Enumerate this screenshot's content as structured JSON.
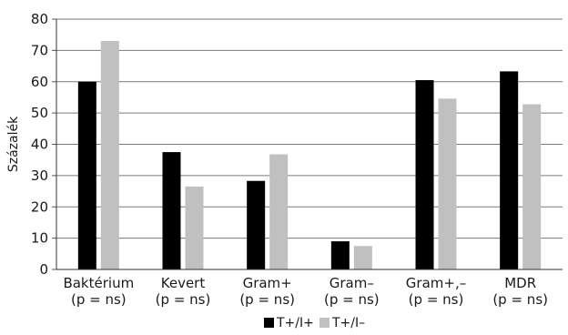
{
  "chart_data": {
    "type": "bar",
    "title": "",
    "xlabel": "",
    "ylabel": "Százalék",
    "ylim": [
      0,
      80
    ],
    "yticks": [
      0,
      10,
      20,
      30,
      40,
      50,
      60,
      70,
      80
    ],
    "grid": true,
    "legend_position": "bottom-center",
    "categories": [
      [
        "Baktérium",
        "(p = ns)"
      ],
      [
        "Kevert",
        "(p = ns)"
      ],
      [
        "Gram+",
        "(p = ns)"
      ],
      [
        "Gram–",
        "(p = ns)"
      ],
      [
        "Gram+,–",
        "(p = ns)"
      ],
      [
        "MDR",
        "(p = ns)"
      ]
    ],
    "series": [
      {
        "name": "T+/I+",
        "color": "#000000",
        "values": [
          60,
          37.5,
          28.3,
          9,
          60.5,
          63.3
        ]
      },
      {
        "name": "T+/I–",
        "color": "#c0c0c0",
        "values": [
          73,
          26.5,
          36.8,
          7.5,
          54.6,
          52.8
        ]
      }
    ]
  }
}
